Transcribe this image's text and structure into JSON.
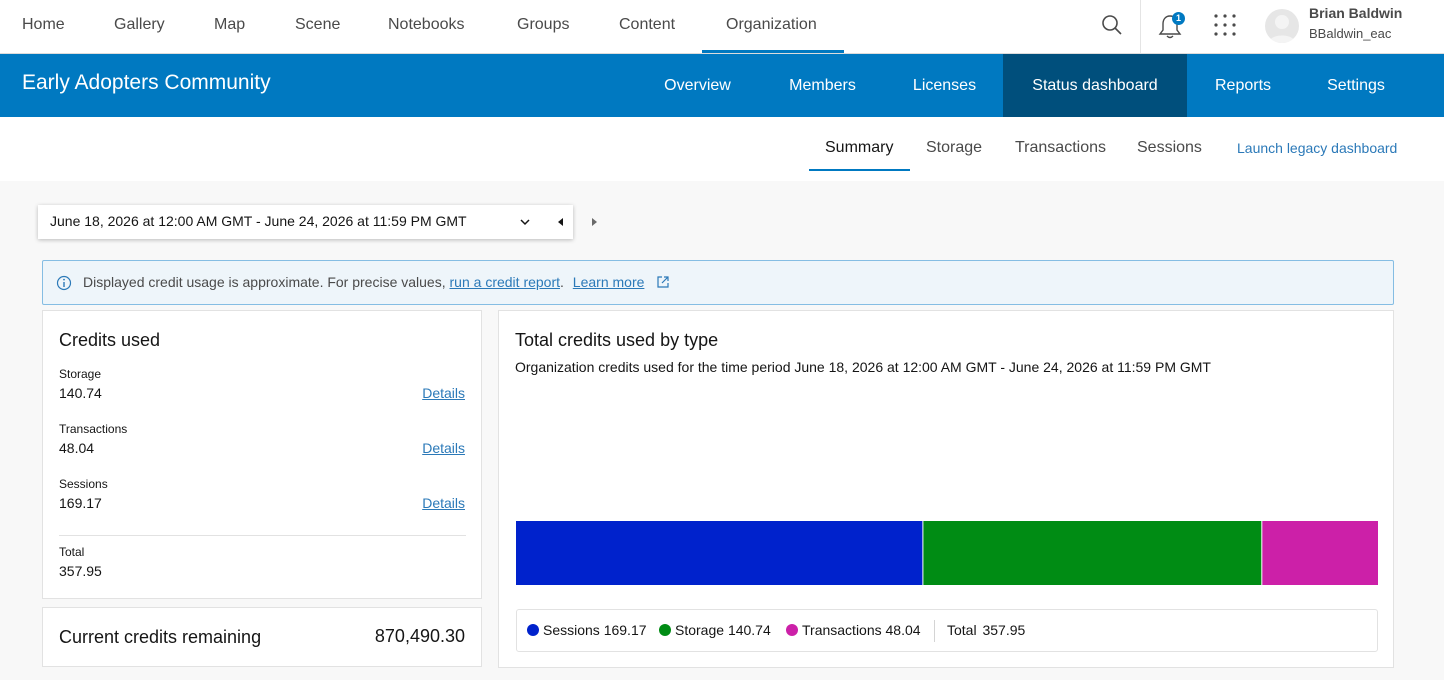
{
  "topnav": {
    "items": [
      "Home",
      "Gallery",
      "Map",
      "Scene",
      "Notebooks",
      "Groups",
      "Content",
      "Organization"
    ],
    "active": "Organization",
    "notification_count": "1",
    "user": {
      "name": "Brian Baldwin",
      "login": "BBaldwin_eac"
    }
  },
  "org": {
    "title": "Early Adopters Community",
    "tabs": [
      "Overview",
      "Members",
      "Licenses",
      "Status dashboard",
      "Reports",
      "Settings"
    ],
    "active_tab": "Status dashboard"
  },
  "subtabs": {
    "items": [
      "Summary",
      "Storage",
      "Transactions",
      "Sessions"
    ],
    "active": "Summary",
    "legacy_link": "Launch legacy dashboard"
  },
  "date_range": "June 18, 2026 at 12:00 AM GMT - June 24, 2026 at 11:59 PM GMT",
  "notice": {
    "text": "Displayed credit usage is approximate. For precise values,",
    "link1": "run a credit report",
    "period": ".",
    "link2": "Learn more"
  },
  "credits": {
    "title": "Credits used",
    "rows": [
      {
        "label": "Storage",
        "value": "140.74",
        "details": "Details"
      },
      {
        "label": "Transactions",
        "value": "48.04",
        "details": "Details"
      },
      {
        "label": "Sessions",
        "value": "169.17",
        "details": "Details"
      }
    ],
    "total_label": "Total",
    "total_value": "357.95"
  },
  "remaining": {
    "label": "Current credits remaining",
    "value": "870,490.30"
  },
  "chart": {
    "title": "Total credits used by type",
    "subtitle": "Organization credits used for the time period June 18, 2026 at 12:00 AM GMT - June 24, 2026 at 11:59 PM GMT",
    "total_label": "Total",
    "total_value": "357.95"
  },
  "chart_data": {
    "type": "bar",
    "orientation": "horizontal-stacked",
    "title": "Total credits used by type",
    "series": [
      {
        "name": "Sessions",
        "value": 169.17,
        "color": "#0022cc"
      },
      {
        "name": "Storage",
        "value": 140.74,
        "color": "#008c14"
      },
      {
        "name": "Transactions",
        "value": 48.04,
        "color": "#cc20a8"
      }
    ],
    "total": 357.95,
    "legend": "bottom"
  },
  "colors": {
    "brand": "#0079c1",
    "brand_dark": "#004f7c",
    "link": "#2b79b8"
  }
}
